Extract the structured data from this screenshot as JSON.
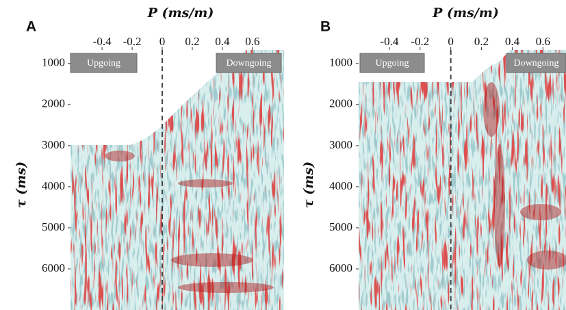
{
  "chart_data": [
    {
      "type": "image",
      "panel_label": "A",
      "xlabel": "P (ms/m)",
      "ylabel": "τ (ms)",
      "annotations": [
        "Upgoing",
        "Downgoing"
      ],
      "xlim": [
        -0.61,
        0.81
      ],
      "xticks": [
        -0.4,
        -0.2,
        0,
        0.2,
        0.4,
        0.6
      ],
      "ylim": [
        670,
        7000
      ],
      "yticks": [
        1000,
        2000,
        3000,
        4000,
        5000,
        6000
      ],
      "vline": 0
    },
    {
      "type": "image",
      "panel_label": "B",
      "xlabel": "P (ms/m)",
      "ylabel": "τ (ms)",
      "annotations": [
        "Upgoing",
        "Downgoing"
      ],
      "xlim": [
        -0.6,
        0.75
      ],
      "xticks": [
        -0.4,
        -0.2,
        0,
        0.2,
        0.4,
        0.6
      ],
      "ylim": [
        670,
        7000
      ],
      "yticks": [
        1000,
        2000,
        3000,
        4000,
        5000,
        6000
      ],
      "vline": 0
    }
  ]
}
